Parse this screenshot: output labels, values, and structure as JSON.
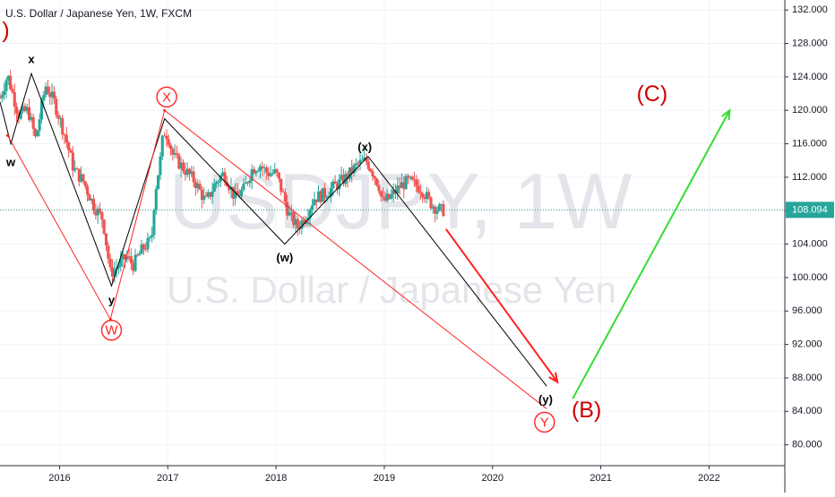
{
  "header": {
    "title": "U.S. Dollar / Japanese Yen, 1W, FXCM"
  },
  "watermark": {
    "symbol": "USDJPY, 1W",
    "name": "U.S. Dollar / Japanese Yen"
  },
  "colors": {
    "up": "#26a69a",
    "down": "#ef5350",
    "red": "#ff2222",
    "black": "#000000",
    "green": "#33dd33",
    "wave_label": "#cc0000",
    "price_badge": "#26a69a",
    "last_price_line": "#26a69a"
  },
  "chart_data": {
    "type": "candlestick",
    "title": "U.S. Dollar / Japanese Yen, 1W, FXCM",
    "x_ticks": [
      "2016",
      "2017",
      "2018",
      "2019",
      "2020",
      "2021",
      "2022"
    ],
    "y_ticks": [
      "132.000",
      "128.000",
      "124.000",
      "120.000",
      "116.000",
      "112.000",
      "108.000",
      "104.000",
      "100.000",
      "96.000",
      "92.000",
      "88.000",
      "84.000",
      "80.000"
    ],
    "xlim": [
      2015.45,
      2022.7
    ],
    "ylim": [
      77.5,
      133.2
    ],
    "last_price": "108.094",
    "price_anchors": [
      [
        2015.45,
        121.5
      ],
      [
        2015.52,
        124.2
      ],
      [
        2015.62,
        119.5
      ],
      [
        2015.71,
        120.0
      ],
      [
        2015.78,
        116.5
      ],
      [
        2015.87,
        123.0
      ],
      [
        2015.95,
        121.0
      ],
      [
        2016.05,
        117.0
      ],
      [
        2016.13,
        113.0
      ],
      [
        2016.22,
        111.5
      ],
      [
        2016.32,
        108.5
      ],
      [
        2016.4,
        107.0
      ],
      [
        2016.47,
        100.5
      ],
      [
        2016.55,
        101.5
      ],
      [
        2016.62,
        102.5
      ],
      [
        2016.68,
        101.5
      ],
      [
        2016.77,
        103.5
      ],
      [
        2016.85,
        104.5
      ],
      [
        2016.88,
        110.0
      ],
      [
        2016.93,
        114.0
      ],
      [
        2016.96,
        117.5
      ],
      [
        2017.0,
        117.0
      ],
      [
        2017.05,
        114.5
      ],
      [
        2017.15,
        113.0
      ],
      [
        2017.25,
        111.5
      ],
      [
        2017.35,
        109.0
      ],
      [
        2017.45,
        111.5
      ],
      [
        2017.52,
        112.5
      ],
      [
        2017.62,
        109.5
      ],
      [
        2017.7,
        110.5
      ],
      [
        2017.78,
        113.0
      ],
      [
        2017.85,
        113.5
      ],
      [
        2017.92,
        112.5
      ],
      [
        2018.0,
        112.5
      ],
      [
        2018.05,
        110.5
      ],
      [
        2018.12,
        107.5
      ],
      [
        2018.2,
        106.0
      ],
      [
        2018.28,
        107.5
      ],
      [
        2018.35,
        109.5
      ],
      [
        2018.45,
        110.0
      ],
      [
        2018.55,
        111.0
      ],
      [
        2018.65,
        112.0
      ],
      [
        2018.75,
        113.5
      ],
      [
        2018.83,
        114.0
      ],
      [
        2018.88,
        113.0
      ],
      [
        2018.95,
        111.0
      ],
      [
        2018.98,
        109.0
      ],
      [
        2019.05,
        109.5
      ],
      [
        2019.15,
        111.0
      ],
      [
        2019.22,
        111.5
      ],
      [
        2019.3,
        111.0
      ],
      [
        2019.35,
        110.5
      ],
      [
        2019.42,
        109.0
      ],
      [
        2019.48,
        108.3
      ],
      [
        2019.53,
        108.0
      ],
      [
        2019.56,
        108.1
      ]
    ],
    "wave_labels": [
      {
        "text": "w",
        "x": 2015.55,
        "y": 113.7
      },
      {
        "text": "x",
        "x": 2015.74,
        "y": 126.0
      },
      {
        "text": "y",
        "x": 2016.48,
        "y": 97.2
      },
      {
        "text": "(w)",
        "x": 2018.08,
        "y": 102.3
      },
      {
        "text": "(x)",
        "x": 2018.82,
        "y": 115.5
      },
      {
        "text": "(y)",
        "x": 2020.49,
        "y": 85.3
      }
    ],
    "circled_labels": [
      {
        "text": "X",
        "x": 2016.99,
        "y": 121.6
      },
      {
        "text": "W",
        "x": 2016.48,
        "y": 93.7
      },
      {
        "text": "Y",
        "x": 2020.48,
        "y": 82.7
      }
    ],
    "big_labels": [
      {
        "text": "(B)",
        "x": 2020.73,
        "y": 84.0
      },
      {
        "text": "(C)",
        "x": 2021.33,
        "y": 121.8
      },
      {
        "text": ")",
        "x": 2015.47,
        "y": 129.4
      }
    ],
    "red_wave": [
      [
        2015.52,
        117.0
      ],
      [
        2016.47,
        95.0
      ],
      [
        2016.97,
        120.0
      ],
      [
        2020.5,
        84.3
      ]
    ],
    "black_wave": [
      [
        2015.45,
        121.0
      ],
      [
        2015.55,
        116.0
      ],
      [
        2015.74,
        124.4
      ],
      [
        2016.48,
        99.0
      ],
      [
        2016.97,
        119.0
      ],
      [
        2018.08,
        104.0
      ],
      [
        2018.85,
        114.5
      ],
      [
        2020.5,
        87.0
      ]
    ],
    "red_arrow": {
      "from": [
        2019.57,
        105.8
      ],
      "to": [
        2020.6,
        87.5
      ]
    },
    "green_arrow": {
      "from": [
        2020.74,
        85.5
      ],
      "to": [
        2022.19,
        120.0
      ]
    }
  }
}
